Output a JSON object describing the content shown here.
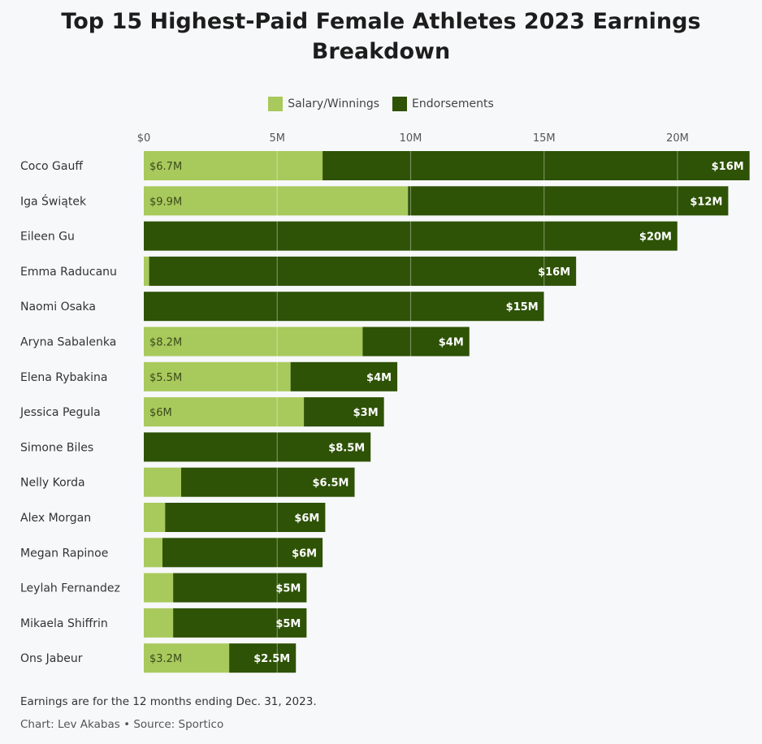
{
  "chart_data": {
    "type": "bar",
    "orientation": "horizontal",
    "stacked": true,
    "title": "Top 15 Highest-Paid Female Athletes 2023 Earnings Breakdown",
    "legend": {
      "placement": "top-center",
      "entries": [
        "Salary/Winnings",
        "Endorsements"
      ]
    },
    "xlabel": "",
    "ylabel": "",
    "xlim": [
      0,
      22.7
    ],
    "xticks": [
      0,
      5,
      10,
      15,
      20
    ],
    "xtick_labels": [
      "$0",
      "5M",
      "10M",
      "15M",
      "20M"
    ],
    "grid": true,
    "categories": [
      "Coco Gauff",
      "Iga Świątek",
      "Eileen Gu",
      "Emma Raducanu",
      "Naomi Osaka",
      "Aryna Sabalenka",
      "Elena Rybakina",
      "Jessica Pegula",
      "Simone Biles",
      "Nelly Korda",
      "Alex Morgan",
      "Megan Rapinoe",
      "Leylah Fernandez",
      "Mikaela Shiffrin",
      "Ons Jabeur"
    ],
    "series": [
      {
        "name": "Salary/Winnings",
        "color": "#a8c95c",
        "values": [
          6.7,
          9.9,
          0,
          0.2,
          0,
          8.2,
          5.5,
          6,
          0,
          1.4,
          0.8,
          0.7,
          1.1,
          1.1,
          3.2
        ],
        "labels": [
          "$6.7M",
          "$9.9M",
          null,
          null,
          null,
          "$8.2M",
          "$5.5M",
          "$6M",
          null,
          null,
          null,
          null,
          null,
          null,
          "$3.2M"
        ]
      },
      {
        "name": "Endorsements",
        "color": "#2e5206",
        "values": [
          16,
          12,
          20,
          16,
          15,
          4,
          4,
          3,
          8.5,
          6.5,
          6,
          6,
          5,
          5,
          2.5
        ],
        "labels": [
          "$16M",
          "$12M",
          "$20M",
          "$16M",
          "$15M",
          "$4M",
          "$4M",
          "$3M",
          "$8.5M",
          "$6.5M",
          "$6M",
          "$6M",
          "$5M",
          "$5M",
          "$2.5M"
        ]
      }
    ]
  },
  "footer": {
    "note": "Earnings are for the 12 months ending Dec. 31, 2023.",
    "credit": "Chart: Lev Akabas • Source: Sportico"
  }
}
